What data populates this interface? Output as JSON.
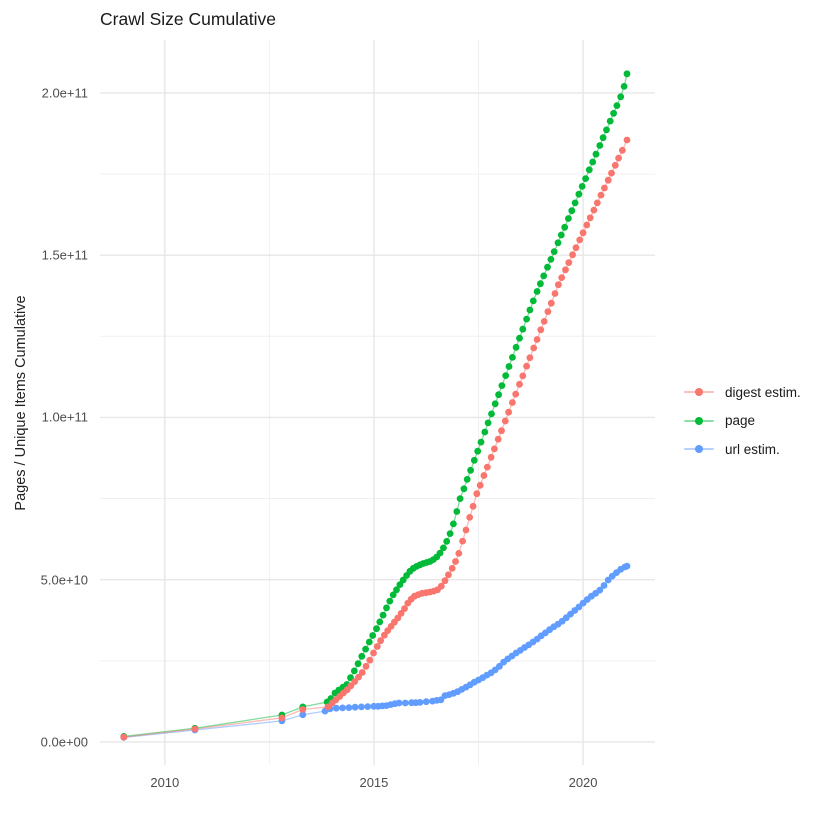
{
  "figure": {
    "title": "Crawl Size Cumulative"
  },
  "axes": {
    "y_title": "Pages / Unique Items Cumulative",
    "x_ticks": [
      {
        "label": "2010",
        "value": 2010
      },
      {
        "label": "2015",
        "value": 2015
      },
      {
        "label": "2020",
        "value": 2020
      }
    ],
    "y_ticks": [
      {
        "label": "0.0e+00",
        "value_billions": 0
      },
      {
        "label": "5.0e+10",
        "value_billions": 50
      },
      {
        "label": "1.0e+11",
        "value_billions": 100
      },
      {
        "label": "1.5e+11",
        "value_billions": 150
      },
      {
        "label": "2.0e+11",
        "value_billions": 200
      }
    ]
  },
  "legend": {
    "items": [
      {
        "label": "digest estim.",
        "color": "#F8766D"
      },
      {
        "label": "page",
        "color": "#00BA38"
      },
      {
        "label": "url estim.",
        "color": "#619CFF"
      }
    ]
  },
  "colors": {
    "grid_major": "#e7e7e7",
    "grid_minor": "#f0f0f0",
    "tick_label": "#4d4d4d",
    "digest": "#F8766D",
    "page": "#00BA38",
    "url": "#619CFF"
  },
  "chart_data": {
    "type": "scatter",
    "title": "Crawl Size Cumulative",
    "xlabel": "",
    "ylabel": "Pages / Unique Items Cumulative",
    "value_unit": "billions (1e9); y axis rendered in scientific notation",
    "x_domain": [
      2008.45,
      2021.72
    ],
    "y_domain_billions": [
      -7.1,
      216.3
    ],
    "x_major_gridlines": [
      2010,
      2015,
      2020
    ],
    "x_minor_gridlines": [
      2012.5,
      2017.5
    ],
    "y_major_gridlines_billions": [
      0,
      50,
      100,
      150,
      200
    ],
    "y_minor_gridlines_billions": [
      25,
      75,
      125,
      175
    ],
    "grid": true,
    "legend_position": "right",
    "draw_order": [
      2,
      1,
      0
    ],
    "series": [
      {
        "name": "digest estim.",
        "color": "#F8766D",
        "points": [
          [
            2009.02,
            1.5
          ],
          [
            2010.72,
            4.0
          ],
          [
            2012.8,
            7.4
          ],
          [
            2013.3,
            10.0
          ],
          [
            2013.9,
            10.8
          ],
          [
            2014.0,
            12.0
          ],
          [
            2014.09,
            13.0
          ],
          [
            2014.18,
            14.0
          ],
          [
            2014.27,
            15.1
          ],
          [
            2014.36,
            16.1
          ],
          [
            2014.45,
            17.3
          ],
          [
            2014.54,
            18.6
          ],
          [
            2014.63,
            20.0
          ],
          [
            2014.72,
            21.4
          ],
          [
            2014.81,
            23.3
          ],
          [
            2014.9,
            25.2
          ],
          [
            2014.99,
            27.4
          ],
          [
            2015.08,
            29.4
          ],
          [
            2015.16,
            31.2
          ],
          [
            2015.25,
            32.9
          ],
          [
            2015.33,
            34.3
          ],
          [
            2015.41,
            35.6
          ],
          [
            2015.49,
            36.9
          ],
          [
            2015.57,
            38.2
          ],
          [
            2015.65,
            39.6
          ],
          [
            2015.73,
            41.1
          ],
          [
            2015.81,
            42.8
          ],
          [
            2015.89,
            44.0
          ],
          [
            2015.97,
            44.9
          ],
          [
            2016.06,
            45.4
          ],
          [
            2016.15,
            45.8
          ],
          [
            2016.25,
            46.0
          ],
          [
            2016.34,
            46.2
          ],
          [
            2016.43,
            46.5
          ],
          [
            2016.52,
            46.9
          ],
          [
            2016.61,
            48.0
          ],
          [
            2016.7,
            49.7
          ],
          [
            2016.78,
            51.5
          ],
          [
            2016.87,
            53.5
          ],
          [
            2016.95,
            55.6
          ],
          [
            2017.03,
            58.1
          ],
          [
            2017.12,
            61.9
          ],
          [
            2017.2,
            65.3
          ],
          [
            2017.29,
            69.2
          ],
          [
            2017.37,
            72.6
          ],
          [
            2017.46,
            76.5
          ],
          [
            2017.54,
            79.1
          ],
          [
            2017.63,
            82.1
          ],
          [
            2017.71,
            84.7
          ],
          [
            2017.8,
            87.7
          ],
          [
            2017.88,
            90.3
          ],
          [
            2017.97,
            93.3
          ],
          [
            2018.05,
            95.9
          ],
          [
            2018.14,
            98.9
          ],
          [
            2018.22,
            101.6
          ],
          [
            2018.31,
            104.6
          ],
          [
            2018.39,
            107.2
          ],
          [
            2018.48,
            110.2
          ],
          [
            2018.56,
            112.8
          ],
          [
            2018.65,
            115.8
          ],
          [
            2018.73,
            118.4
          ],
          [
            2018.82,
            121.4
          ],
          [
            2018.9,
            124.0
          ],
          [
            2018.99,
            127.0
          ],
          [
            2019.07,
            129.6
          ],
          [
            2019.16,
            132.6
          ],
          [
            2019.24,
            135.2
          ],
          [
            2019.33,
            138.2
          ],
          [
            2019.41,
            140.9
          ],
          [
            2019.49,
            143.1
          ],
          [
            2019.58,
            145.5
          ],
          [
            2019.66,
            147.7
          ],
          [
            2019.75,
            150.1
          ],
          [
            2019.83,
            152.3
          ],
          [
            2019.92,
            154.7
          ],
          [
            2020.0,
            156.9
          ],
          [
            2020.09,
            159.3
          ],
          [
            2020.17,
            161.5
          ],
          [
            2020.26,
            163.9
          ],
          [
            2020.34,
            166.1
          ],
          [
            2020.43,
            168.5
          ],
          [
            2020.51,
            170.7
          ],
          [
            2020.6,
            173.1
          ],
          [
            2020.68,
            175.3
          ],
          [
            2020.77,
            177.7
          ],
          [
            2020.85,
            179.9
          ],
          [
            2020.94,
            182.3
          ],
          [
            2021.05,
            185.5
          ]
        ]
      },
      {
        "name": "page",
        "color": "#00BA38",
        "points": [
          [
            2009.02,
            1.7
          ],
          [
            2010.72,
            4.2
          ],
          [
            2012.8,
            8.3
          ],
          [
            2013.3,
            10.8
          ],
          [
            2013.88,
            12.3
          ],
          [
            2013.97,
            13.4
          ],
          [
            2014.07,
            15.1
          ],
          [
            2014.16,
            16.0
          ],
          [
            2014.26,
            16.9
          ],
          [
            2014.35,
            17.7
          ],
          [
            2014.44,
            19.8
          ],
          [
            2014.53,
            21.9
          ],
          [
            2014.62,
            24.1
          ],
          [
            2014.71,
            26.4
          ],
          [
            2014.8,
            28.6
          ],
          [
            2014.89,
            30.8
          ],
          [
            2014.97,
            32.8
          ],
          [
            2015.06,
            34.9
          ],
          [
            2015.14,
            37.0
          ],
          [
            2015.22,
            39.1
          ],
          [
            2015.3,
            41.3
          ],
          [
            2015.38,
            43.4
          ],
          [
            2015.46,
            45.3
          ],
          [
            2015.54,
            46.9
          ],
          [
            2015.62,
            48.5
          ],
          [
            2015.7,
            49.9
          ],
          [
            2015.78,
            51.3
          ],
          [
            2015.86,
            52.6
          ],
          [
            2015.94,
            53.5
          ],
          [
            2016.02,
            54.1
          ],
          [
            2016.1,
            54.6
          ],
          [
            2016.18,
            55.0
          ],
          [
            2016.26,
            55.3
          ],
          [
            2016.34,
            55.6
          ],
          [
            2016.42,
            56.2
          ],
          [
            2016.5,
            57.0
          ],
          [
            2016.58,
            58.2
          ],
          [
            2016.66,
            59.8
          ],
          [
            2016.74,
            61.8
          ],
          [
            2016.82,
            64.2
          ],
          [
            2016.9,
            67.2
          ],
          [
            2016.98,
            71.0
          ],
          [
            2017.06,
            75.0
          ],
          [
            2017.15,
            78.0
          ],
          [
            2017.23,
            80.9
          ],
          [
            2017.31,
            83.7
          ],
          [
            2017.4,
            86.8
          ],
          [
            2017.48,
            89.6
          ],
          [
            2017.56,
            92.4
          ],
          [
            2017.65,
            95.5
          ],
          [
            2017.73,
            98.3
          ],
          [
            2017.81,
            101.1
          ],
          [
            2017.9,
            104.2
          ],
          [
            2017.98,
            107.0
          ],
          [
            2018.06,
            109.8
          ],
          [
            2018.15,
            112.9
          ],
          [
            2018.23,
            115.7
          ],
          [
            2018.31,
            118.5
          ],
          [
            2018.4,
            121.6
          ],
          [
            2018.48,
            124.4
          ],
          [
            2018.56,
            127.2
          ],
          [
            2018.65,
            130.3
          ],
          [
            2018.73,
            133.1
          ],
          [
            2018.81,
            135.9
          ],
          [
            2018.9,
            138.8
          ],
          [
            2018.98,
            141.2
          ],
          [
            2019.06,
            143.6
          ],
          [
            2019.15,
            146.3
          ],
          [
            2019.23,
            148.7
          ],
          [
            2019.31,
            151.1
          ],
          [
            2019.4,
            153.8
          ],
          [
            2019.48,
            156.2
          ],
          [
            2019.56,
            158.6
          ],
          [
            2019.65,
            161.3
          ],
          [
            2019.73,
            163.7
          ],
          [
            2019.81,
            166.1
          ],
          [
            2019.9,
            168.8
          ],
          [
            2019.98,
            171.2
          ],
          [
            2020.06,
            173.6
          ],
          [
            2020.15,
            176.3
          ],
          [
            2020.23,
            178.7
          ],
          [
            2020.31,
            181.1
          ],
          [
            2020.4,
            183.8
          ],
          [
            2020.48,
            186.2
          ],
          [
            2020.56,
            188.6
          ],
          [
            2020.65,
            191.3
          ],
          [
            2020.73,
            193.7
          ],
          [
            2020.81,
            196.1
          ],
          [
            2020.9,
            198.8
          ],
          [
            2020.98,
            202.0
          ],
          [
            2021.05,
            205.9
          ]
        ]
      },
      {
        "name": "url estim.",
        "color": "#619CFF",
        "points": [
          [
            2009.02,
            1.4
          ],
          [
            2010.72,
            3.7
          ],
          [
            2012.8,
            6.5
          ],
          [
            2013.3,
            8.4
          ],
          [
            2013.83,
            9.5
          ],
          [
            2013.95,
            10.2
          ],
          [
            2014.1,
            10.4
          ],
          [
            2014.25,
            10.5
          ],
          [
            2014.4,
            10.6
          ],
          [
            2014.55,
            10.7
          ],
          [
            2014.7,
            10.8
          ],
          [
            2014.85,
            10.9
          ],
          [
            2015.0,
            11.0
          ],
          [
            2015.1,
            11.0
          ],
          [
            2015.2,
            11.1
          ],
          [
            2015.3,
            11.2
          ],
          [
            2015.4,
            11.5
          ],
          [
            2015.5,
            11.8
          ],
          [
            2015.6,
            12.0
          ],
          [
            2015.75,
            12.0
          ],
          [
            2015.9,
            12.1
          ],
          [
            2016.0,
            12.1
          ],
          [
            2016.1,
            12.2
          ],
          [
            2016.25,
            12.4
          ],
          [
            2016.4,
            12.6
          ],
          [
            2016.5,
            12.8
          ],
          [
            2016.6,
            13.0
          ],
          [
            2016.7,
            14.3
          ],
          [
            2016.8,
            14.6
          ],
          [
            2016.9,
            15.0
          ],
          [
            2017.0,
            15.5
          ],
          [
            2017.1,
            16.2
          ],
          [
            2017.2,
            16.9
          ],
          [
            2017.3,
            17.6
          ],
          [
            2017.4,
            18.4
          ],
          [
            2017.5,
            19.1
          ],
          [
            2017.6,
            19.8
          ],
          [
            2017.7,
            20.6
          ],
          [
            2017.8,
            21.3
          ],
          [
            2017.9,
            22.2
          ],
          [
            2018.0,
            23.3
          ],
          [
            2018.1,
            24.6
          ],
          [
            2018.2,
            25.6
          ],
          [
            2018.3,
            26.5
          ],
          [
            2018.4,
            27.4
          ],
          [
            2018.5,
            28.2
          ],
          [
            2018.6,
            29.1
          ],
          [
            2018.7,
            29.9
          ],
          [
            2018.8,
            30.8
          ],
          [
            2018.9,
            31.7
          ],
          [
            2019.0,
            32.7
          ],
          [
            2019.1,
            33.6
          ],
          [
            2019.2,
            34.6
          ],
          [
            2019.3,
            35.5
          ],
          [
            2019.4,
            36.3
          ],
          [
            2019.5,
            37.2
          ],
          [
            2019.6,
            38.3
          ],
          [
            2019.7,
            39.4
          ],
          [
            2019.8,
            40.5
          ],
          [
            2019.9,
            41.6
          ],
          [
            2020.0,
            42.8
          ],
          [
            2020.1,
            43.9
          ],
          [
            2020.2,
            44.9
          ],
          [
            2020.3,
            45.8
          ],
          [
            2020.4,
            46.8
          ],
          [
            2020.5,
            48.2
          ],
          [
            2020.6,
            49.9
          ],
          [
            2020.7,
            51.1
          ],
          [
            2020.8,
            52.2
          ],
          [
            2020.9,
            53.2
          ],
          [
            2021.0,
            53.9
          ],
          [
            2021.05,
            54.2
          ]
        ]
      }
    ]
  }
}
